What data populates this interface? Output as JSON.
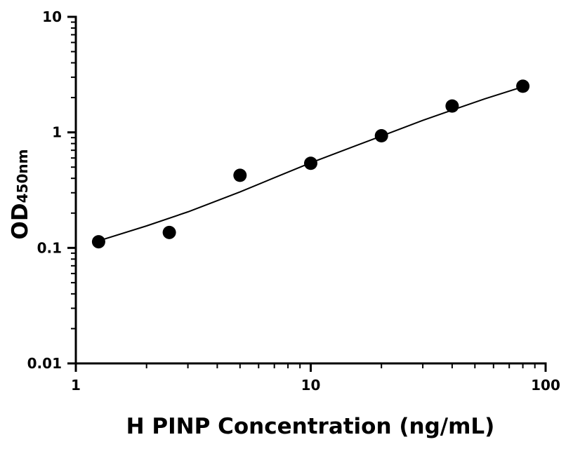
{
  "chart_data": {
    "type": "scatter",
    "title": "",
    "xlabel": "H PINP Concentration (ng/mL)",
    "ylabel": {
      "main": "OD",
      "sub": "450nm"
    },
    "x_scale": "log",
    "y_scale": "log",
    "xlim": [
      1,
      100
    ],
    "ylim": [
      0.01,
      10
    ],
    "x_ticks": [
      {
        "value": 1,
        "label": "1"
      },
      {
        "value": 10,
        "label": "10"
      },
      {
        "value": 100,
        "label": "100"
      }
    ],
    "y_ticks": [
      {
        "value": 0.01,
        "label": "0.01"
      },
      {
        "value": 0.1,
        "label": "0.1"
      },
      {
        "value": 1,
        "label": "1"
      },
      {
        "value": 10,
        "label": "10"
      }
    ],
    "minor_ticks": true,
    "grid": false,
    "legend": "none",
    "marker_color": "#000000",
    "series": [
      {
        "points": [
          {
            "x": 1.25,
            "y": 0.113
          },
          {
            "x": 2.5,
            "y": 0.136
          },
          {
            "x": 5,
            "y": 0.425
          },
          {
            "x": 10,
            "y": 0.54
          },
          {
            "x": 20,
            "y": 0.935
          },
          {
            "x": 40,
            "y": 1.69
          },
          {
            "x": 80,
            "y": 2.51
          }
        ],
        "fit_curve": [
          {
            "x": 1.25,
            "y": 0.115
          },
          {
            "x": 2,
            "y": 0.155
          },
          {
            "x": 3,
            "y": 0.205
          },
          {
            "x": 5,
            "y": 0.305
          },
          {
            "x": 7,
            "y": 0.405
          },
          {
            "x": 10,
            "y": 0.545
          },
          {
            "x": 15,
            "y": 0.745
          },
          {
            "x": 20,
            "y": 0.93
          },
          {
            "x": 30,
            "y": 1.27
          },
          {
            "x": 40,
            "y": 1.56
          },
          {
            "x": 55,
            "y": 1.95
          },
          {
            "x": 80,
            "y": 2.48
          }
        ]
      }
    ]
  }
}
